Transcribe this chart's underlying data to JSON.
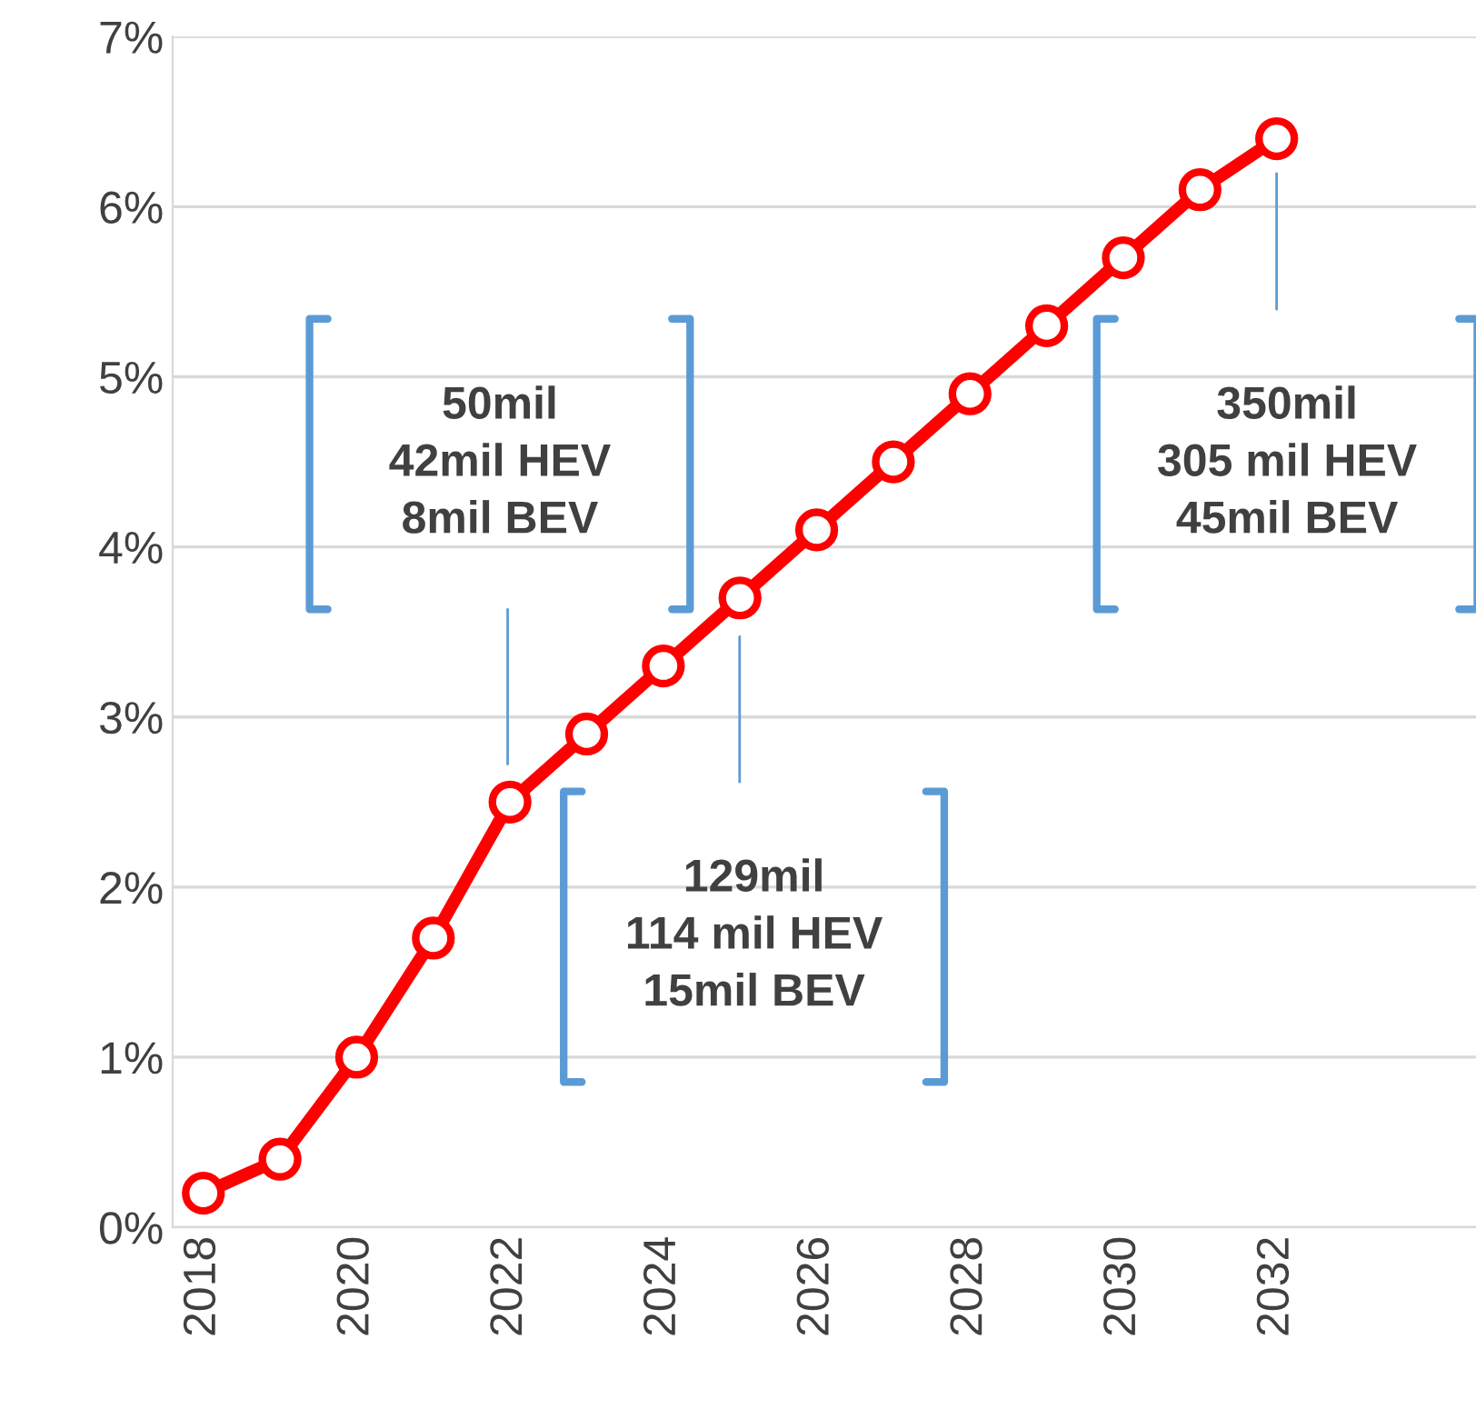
{
  "chart_data": {
    "type": "line",
    "x": [
      2018,
      2019,
      2020,
      2021,
      2022,
      2023,
      2024,
      2025,
      2026,
      2027,
      2028,
      2029,
      2030,
      2031,
      2032
    ],
    "series": [
      {
        "color": "#ff0000",
        "values": [
          0.2,
          0.4,
          1.0,
          1.7,
          2.5,
          2.9,
          3.3,
          3.7,
          4.1,
          4.5,
          4.9,
          5.3,
          5.7,
          6.1,
          6.4
        ]
      }
    ],
    "marker": "circle",
    "line_style": "solid",
    "xlim": [
      2017.6,
      2034.6
    ],
    "xticks": [
      2018,
      2020,
      2022,
      2024,
      2026,
      2028,
      2030,
      2032
    ],
    "ylim": [
      0,
      7
    ],
    "yticks": [
      {
        "value": 0,
        "label": "0%"
      },
      {
        "value": 1,
        "label": "1%"
      },
      {
        "value": 2,
        "label": "2%"
      },
      {
        "value": 3,
        "label": "3%"
      },
      {
        "value": 4,
        "label": "4%"
      },
      {
        "value": 5,
        "label": "5%"
      },
      {
        "value": 6,
        "label": "6%"
      },
      {
        "value": 7,
        "label": "7%"
      }
    ],
    "grid": "y",
    "legend": false,
    "annotations": [
      "50mil\n42mil HEV\n8mil BEV",
      "129mil\n114 mil HEV\n15mil BEV",
      "350mil\n305 mil HEV\n45mil BEV"
    ]
  }
}
